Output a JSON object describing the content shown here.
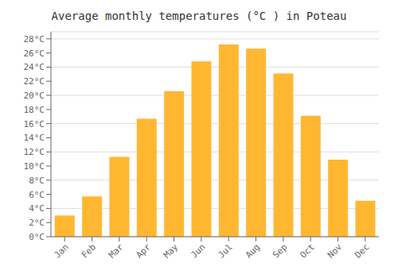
{
  "chart_data": {
    "type": "bar",
    "title": "Average monthly temperatures (°C ) in Poteau",
    "categories": [
      "Jan",
      "Feb",
      "Mar",
      "Apr",
      "May",
      "Jun",
      "Jul",
      "Aug",
      "Sep",
      "Oct",
      "Nov",
      "Dec"
    ],
    "values": [
      3.0,
      5.7,
      11.3,
      16.7,
      20.6,
      24.8,
      27.2,
      26.6,
      23.1,
      17.1,
      10.9,
      5.1
    ],
    "color": "#FFB732",
    "ylim": [
      0,
      29
    ],
    "yticks": [
      {
        "value": 0,
        "label": "0°C"
      },
      {
        "value": 2,
        "label": "2°C"
      },
      {
        "value": 4,
        "label": "4°C"
      },
      {
        "value": 6,
        "label": "6°C"
      },
      {
        "value": 8,
        "label": "8°C"
      },
      {
        "value": 10,
        "label": "10°C"
      },
      {
        "value": 12,
        "label": "12°C"
      },
      {
        "value": 14,
        "label": "14°C"
      },
      {
        "value": 16,
        "label": "16°C"
      },
      {
        "value": 18,
        "label": "18°C"
      },
      {
        "value": 20,
        "label": "20°C"
      },
      {
        "value": 22,
        "label": "22°C"
      },
      {
        "value": 24,
        "label": "24°C"
      },
      {
        "value": 26,
        "label": "26°C"
      },
      {
        "value": 28,
        "label": "28°C"
      }
    ],
    "grid": true
  }
}
